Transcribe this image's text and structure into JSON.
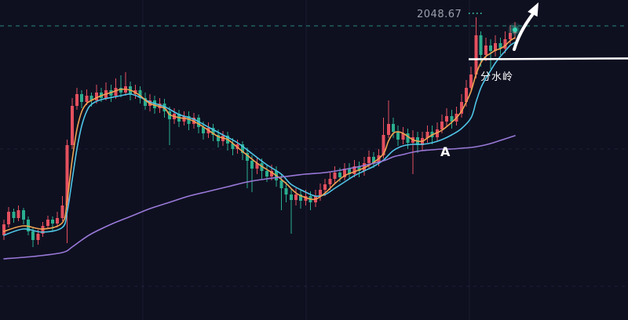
{
  "price_label": {
    "value": "2048.67"
  },
  "annotations": {
    "watershed": "分水岭",
    "point_a": "A"
  },
  "chart_data": {
    "type": "candlestick",
    "price_line": 2048.67,
    "ylim": [
      1955,
      2057
    ],
    "grid": true,
    "legend_position": "none",
    "colors": {
      "up": "#e4505e",
      "down": "#2aae8f",
      "ma_fast": "#4fc4e6",
      "ma_mid": "#f0a352",
      "ma_slow": "#9a79d8",
      "price_line": "#2a9d8e",
      "marker": "#3ad6b5",
      "annotation": "#ffffff",
      "label": "#9aa0ad"
    },
    "candles": [
      [
        1981.92,
        1986.92,
        1980.42,
        1985.42
      ],
      [
        1985.42,
        1990.92,
        1984.42,
        1989.42
      ],
      [
        1989.42,
        1990.42,
        1985.92,
        1987.42
      ],
      [
        1987.42,
        1991.42,
        1986.42,
        1989.92
      ],
      [
        1989.92,
        1990.67,
        1985.42,
        1986.92
      ],
      [
        1986.92,
        1987.92,
        1981.92,
        1983.17
      ],
      [
        1983.17,
        1984.42,
        1978.17,
        1980.42
      ],
      [
        1980.42,
        1983.67,
        1978.92,
        1982.42
      ],
      [
        1982.42,
        1986.17,
        1981.42,
        1984.92
      ],
      [
        1984.92,
        1988.17,
        1983.92,
        1986.92
      ],
      [
        1986.92,
        1987.92,
        1983.17,
        1985.67
      ],
      [
        1985.67,
        1989.42,
        1984.42,
        1987.42
      ],
      [
        1987.42,
        1994.42,
        1986.42,
        1991.42
      ],
      [
        1991.42,
        2012.42,
        1979.42,
        2010.67
      ],
      [
        2010.67,
        2025.67,
        2009.42,
        2023.17
      ],
      [
        2023.17,
        2028.92,
        2021.92,
        2026.92
      ],
      [
        2026.92,
        2028.17,
        2022.42,
        2024.42
      ],
      [
        2024.42,
        2028.42,
        2023.42,
        2026.42
      ],
      [
        2026.42,
        2027.42,
        2022.92,
        2024.92
      ],
      [
        2024.92,
        2029.92,
        2023.92,
        2027.42
      ],
      [
        2027.42,
        2028.92,
        2024.42,
        2025.67
      ],
      [
        2025.67,
        2030.67,
        2024.92,
        2028.17
      ],
      [
        2028.17,
        2029.92,
        2024.42,
        2026.42
      ],
      [
        2026.42,
        2031.92,
        2025.42,
        2028.92
      ],
      [
        2028.92,
        2032.92,
        2025.92,
        2027.42
      ],
      [
        2027.42,
        2033.92,
        2026.42,
        2029.42
      ],
      [
        2029.42,
        2030.92,
        2024.92,
        2026.92
      ],
      [
        2026.92,
        2029.92,
        2025.42,
        2028.17
      ],
      [
        2028.17,
        2029.42,
        2023.92,
        2025.67
      ],
      [
        2025.67,
        2027.42,
        2021.92,
        2023.17
      ],
      [
        2023.17,
        2026.92,
        2021.42,
        2024.92
      ],
      [
        2024.92,
        2026.42,
        2020.67,
        2022.42
      ],
      [
        2022.42,
        2025.67,
        2020.92,
        2023.92
      ],
      [
        2023.92,
        2025.42,
        2019.42,
        2021.42
      ],
      [
        2021.42,
        2022.92,
        2010.67,
        2018.92
      ],
      [
        2018.92,
        2022.42,
        2017.42,
        2020.67
      ],
      [
        2020.67,
        2021.92,
        2016.42,
        2018.17
      ],
      [
        2018.17,
        2021.42,
        2016.92,
        2019.92
      ],
      [
        2019.92,
        2021.42,
        2015.42,
        2017.42
      ],
      [
        2017.42,
        2020.92,
        2015.92,
        2019.42
      ],
      [
        2019.42,
        2020.42,
        2014.42,
        2016.42
      ],
      [
        2016.42,
        2018.17,
        2012.42,
        2014.42
      ],
      [
        2014.42,
        2017.92,
        2012.92,
        2016.17
      ],
      [
        2016.17,
        2017.42,
        2011.92,
        2013.92
      ],
      [
        2013.92,
        2015.67,
        2009.92,
        2011.92
      ],
      [
        2011.92,
        2015.17,
        2010.42,
        2013.67
      ],
      [
        2013.67,
        2014.92,
        2008.92,
        2011.17
      ],
      [
        2011.17,
        2012.92,
        2007.42,
        2009.42
      ],
      [
        2009.42,
        2012.42,
        2007.92,
        2010.92
      ],
      [
        2010.92,
        2011.92,
        2005.92,
        2008.17
      ],
      [
        2008.17,
        2009.92,
        1996.92,
        2005.67
      ],
      [
        2005.67,
        2007.42,
        1995.67,
        2003.17
      ],
      [
        2003.17,
        2006.92,
        2001.42,
        2004.92
      ],
      [
        2004.92,
        2006.42,
        1999.92,
        2002.42
      ],
      [
        2002.42,
        2004.42,
        1998.92,
        2000.67
      ],
      [
        2000.67,
        2004.42,
        1999.42,
        2002.42
      ],
      [
        2002.42,
        2003.92,
        1997.42,
        1999.42
      ],
      [
        1999.42,
        2001.42,
        1989.92,
        1996.92
      ],
      [
        1996.92,
        1998.92,
        1992.42,
        1994.92
      ],
      [
        1994.92,
        1996.92,
        1982.42,
        1993.17
      ],
      [
        1993.17,
        1996.92,
        1991.42,
        1994.92
      ],
      [
        1994.92,
        1996.42,
        1990.42,
        1992.92
      ],
      [
        1992.92,
        1996.42,
        1991.42,
        1994.42
      ],
      [
        1994.42,
        1995.92,
        1989.92,
        1992.42
      ],
      [
        1992.42,
        1996.42,
        1990.92,
        1994.42
      ],
      [
        1994.42,
        1998.42,
        1992.92,
        1996.42
      ],
      [
        1996.42,
        1999.92,
        1994.42,
        1998.17
      ],
      [
        1998.17,
        2001.92,
        1996.42,
        1999.92
      ],
      [
        1999.92,
        2003.92,
        1998.42,
        2001.92
      ],
      [
        2001.92,
        2003.42,
        1998.92,
        2000.42
      ],
      [
        2000.42,
        2004.92,
        1999.42,
        2003.17
      ],
      [
        2003.17,
        2004.92,
        1999.92,
        2001.42
      ],
      [
        2001.42,
        2005.92,
        2000.42,
        2003.92
      ],
      [
        2003.92,
        2005.42,
        2000.42,
        2002.42
      ],
      [
        2002.42,
        2006.92,
        2000.92,
        2004.92
      ],
      [
        2004.92,
        2008.92,
        2003.42,
        2006.92
      ],
      [
        2006.92,
        2008.42,
        2003.42,
        2004.92
      ],
      [
        2004.92,
        2009.42,
        2003.92,
        2007.42
      ],
      [
        2007.42,
        2019.42,
        2006.42,
        2013.92
      ],
      [
        2013.92,
        2024.92,
        2012.92,
        2017.42
      ],
      [
        2017.42,
        2019.42,
        2012.92,
        2014.92
      ],
      [
        2014.92,
        2016.92,
        2010.42,
        2012.42
      ],
      [
        2012.42,
        2016.42,
        2010.92,
        2014.42
      ],
      [
        2014.42,
        2015.92,
        2009.42,
        2011.42
      ],
      [
        2011.42,
        2015.42,
        2001.42,
        2013.17
      ],
      [
        2013.17,
        2014.92,
        2008.17,
        2010.67
      ],
      [
        2010.67,
        2014.92,
        2008.92,
        2012.92
      ],
      [
        2012.92,
        2016.92,
        2011.42,
        2014.92
      ],
      [
        2014.92,
        2016.92,
        2010.92,
        2013.17
      ],
      [
        2013.17,
        2017.92,
        2011.92,
        2015.67
      ],
      [
        2015.67,
        2020.42,
        2014.42,
        2018.17
      ],
      [
        2018.17,
        2022.42,
        2016.42,
        2019.92
      ],
      [
        2019.92,
        2021.92,
        2015.92,
        2018.17
      ],
      [
        2018.17,
        2022.92,
        2016.92,
        2020.67
      ],
      [
        2020.67,
        2026.92,
        2019.42,
        2024.42
      ],
      [
        2024.42,
        2031.42,
        2022.92,
        2028.92
      ],
      [
        2028.92,
        2035.67,
        2027.42,
        2033.17
      ],
      [
        2033.17,
        2051.42,
        2031.92,
        2045.67
      ],
      [
        2045.67,
        2046.92,
        2035.67,
        2039.42
      ],
      [
        2039.42,
        2044.92,
        2037.42,
        2042.42
      ],
      [
        2042.42,
        2044.42,
        2034.92,
        2040.67
      ],
      [
        2040.67,
        2045.67,
        2038.92,
        2043.17
      ],
      [
        2043.17,
        2044.92,
        2039.42,
        2041.42
      ],
      [
        2041.42,
        2046.92,
        2039.92,
        2044.42
      ],
      [
        2044.42,
        2048.92,
        2042.92,
        2046.42
      ],
      [
        2046.42,
        2049.92,
        2044.42,
        2047.42
      ]
    ],
    "moving_averages": [
      {
        "name": "ma-fast",
        "color_key": "ma_fast",
        "points": [
          [
            0,
            1981.92
          ],
          [
            4,
            1983.92
          ],
          [
            8,
            1982.92
          ],
          [
            12,
            1984.42
          ],
          [
            13,
            1989.42
          ],
          [
            14,
            1999.42
          ],
          [
            15,
            2009.42
          ],
          [
            16,
            2016.92
          ],
          [
            17,
            2021.42
          ],
          [
            18,
            2023.67
          ],
          [
            20,
            2025.17
          ],
          [
            24,
            2026.42
          ],
          [
            26,
            2026.92
          ],
          [
            28,
            2025.92
          ],
          [
            30,
            2024.42
          ],
          [
            33,
            2022.92
          ],
          [
            36,
            2020.42
          ],
          [
            39,
            2018.92
          ],
          [
            42,
            2016.42
          ],
          [
            45,
            2013.92
          ],
          [
            48,
            2011.42
          ],
          [
            51,
            2007.92
          ],
          [
            54,
            2004.42
          ],
          [
            57,
            2001.42
          ],
          [
            59,
            1998.17
          ],
          [
            62,
            1995.67
          ],
          [
            64,
            1994.42
          ],
          [
            66,
            1994.92
          ],
          [
            68,
            1996.92
          ],
          [
            70,
            1998.92
          ],
          [
            72,
            2000.92
          ],
          [
            74,
            2002.42
          ],
          [
            76,
            2003.92
          ],
          [
            78,
            2005.92
          ],
          [
            80,
            2008.92
          ],
          [
            82,
            2010.42
          ],
          [
            84,
            2010.92
          ],
          [
            86,
            2010.92
          ],
          [
            88,
            2011.42
          ],
          [
            90,
            2012.42
          ],
          [
            92,
            2013.92
          ],
          [
            94,
            2015.92
          ],
          [
            96,
            2019.42
          ],
          [
            97,
            2024.42
          ],
          [
            98,
            2028.92
          ],
          [
            99,
            2031.92
          ],
          [
            100,
            2034.42
          ],
          [
            101,
            2036.92
          ],
          [
            102,
            2038.92
          ],
          [
            103,
            2040.67
          ],
          [
            104,
            2042.42
          ],
          [
            105,
            2043.42
          ]
        ]
      },
      {
        "name": "ma-mid",
        "color_key": "ma_mid",
        "points": [
          [
            0,
            1983.17
          ],
          [
            4,
            1984.92
          ],
          [
            8,
            1983.92
          ],
          [
            12,
            1985.92
          ],
          [
            13,
            1993.17
          ],
          [
            14,
            2005.67
          ],
          [
            15,
            2015.67
          ],
          [
            16,
            2021.42
          ],
          [
            17,
            2023.92
          ],
          [
            18,
            2024.92
          ],
          [
            20,
            2026.42
          ],
          [
            22,
            2027.42
          ],
          [
            24,
            2028.42
          ],
          [
            26,
            2028.17
          ],
          [
            28,
            2026.42
          ],
          [
            30,
            2023.92
          ],
          [
            33,
            2022.42
          ],
          [
            34,
            2020.42
          ],
          [
            36,
            2019.42
          ],
          [
            38,
            2018.92
          ],
          [
            40,
            2017.42
          ],
          [
            42,
            2015.42
          ],
          [
            44,
            2013.42
          ],
          [
            46,
            2012.42
          ],
          [
            48,
            2009.92
          ],
          [
            50,
            2007.42
          ],
          [
            52,
            2004.92
          ],
          [
            54,
            2002.92
          ],
          [
            56,
            2000.92
          ],
          [
            58,
            1998.42
          ],
          [
            60,
            1995.42
          ],
          [
            62,
            1993.92
          ],
          [
            64,
            1993.42
          ],
          [
            66,
            1995.42
          ],
          [
            68,
            1998.42
          ],
          [
            70,
            2000.92
          ],
          [
            72,
            2002.17
          ],
          [
            74,
            2003.42
          ],
          [
            76,
            2005.17
          ],
          [
            78,
            2007.92
          ],
          [
            79,
            2011.92
          ],
          [
            80,
            2014.42
          ],
          [
            81,
            2014.92
          ],
          [
            82,
            2014.42
          ],
          [
            83,
            2013.42
          ],
          [
            84,
            2012.42
          ],
          [
            85,
            2011.92
          ],
          [
            86,
            2011.92
          ],
          [
            87,
            2012.92
          ],
          [
            88,
            2013.92
          ],
          [
            90,
            2015.42
          ],
          [
            92,
            2017.92
          ],
          [
            93,
            2019.42
          ],
          [
            94,
            2021.42
          ],
          [
            95,
            2024.42
          ],
          [
            96,
            2027.92
          ],
          [
            97,
            2033.17
          ],
          [
            98,
            2036.92
          ],
          [
            99,
            2038.92
          ],
          [
            100,
            2039.92
          ],
          [
            101,
            2040.92
          ],
          [
            102,
            2041.42
          ],
          [
            103,
            2042.42
          ],
          [
            104,
            2043.92
          ],
          [
            105,
            2044.92
          ]
        ]
      },
      {
        "name": "ma-slow",
        "color_key": "ma_slow",
        "points": [
          [
            0,
            1974.42
          ],
          [
            6,
            1975.17
          ],
          [
            12,
            1976.42
          ],
          [
            14,
            1978.17
          ],
          [
            16,
            1980.42
          ],
          [
            18,
            1982.42
          ],
          [
            22,
            1985.42
          ],
          [
            26,
            1987.92
          ],
          [
            30,
            1990.42
          ],
          [
            34,
            1992.42
          ],
          [
            38,
            1994.42
          ],
          [
            42,
            1995.92
          ],
          [
            46,
            1997.42
          ],
          [
            50,
            1998.92
          ],
          [
            54,
            1999.92
          ],
          [
            58,
            2000.67
          ],
          [
            62,
            2001.42
          ],
          [
            66,
            2001.92
          ],
          [
            70,
            2002.92
          ],
          [
            74,
            2004.17
          ],
          [
            78,
            2005.67
          ],
          [
            80,
            2006.92
          ],
          [
            82,
            2007.67
          ],
          [
            84,
            2008.42
          ],
          [
            86,
            2008.92
          ],
          [
            88,
            2009.17
          ],
          [
            90,
            2009.42
          ],
          [
            92,
            2009.42
          ],
          [
            94,
            2009.67
          ],
          [
            96,
            2009.92
          ],
          [
            98,
            2010.42
          ],
          [
            100,
            2011.17
          ],
          [
            102,
            2012.17
          ],
          [
            104,
            2013.17
          ],
          [
            105,
            2013.67
          ]
        ]
      }
    ]
  }
}
